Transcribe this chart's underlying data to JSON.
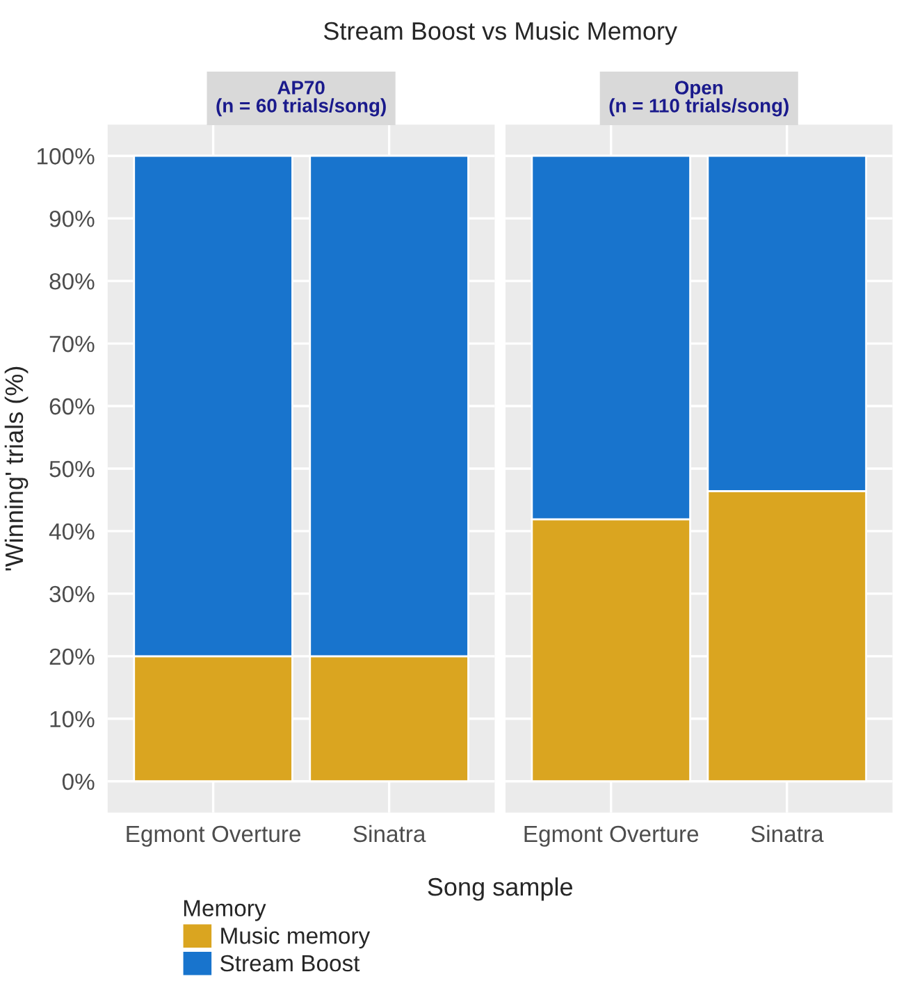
{
  "chart_data": [
    {
      "type": "bar",
      "title": "Stream Boost vs Music Memory",
      "subtitle": "AP70\n(n = 60 trials/song)",
      "xlabel": "Song sample",
      "ylabel": "'Winning' trials (%)",
      "legend_title": "Memory",
      "legend": "bottom",
      "stacked": true,
      "grid": true,
      "categories": [
        "Egmont Overture",
        "Sinatra"
      ],
      "series": [
        {
          "name": "Music memory",
          "color": "#daa520",
          "values": [
            20,
            20
          ]
        },
        {
          "name": "Stream Boost",
          "color": "#1874cd",
          "values": [
            80,
            80
          ]
        }
      ],
      "ylim": [
        -5,
        105
      ],
      "yticks": [
        {
          "value": 0,
          "label": "0%"
        },
        {
          "value": 10,
          "label": "10%"
        },
        {
          "value": 20,
          "label": "20%"
        },
        {
          "value": 30,
          "label": "30%"
        },
        {
          "value": 40,
          "label": "40%"
        },
        {
          "value": 50,
          "label": "50%"
        },
        {
          "value": 60,
          "label": "60%"
        },
        {
          "value": 70,
          "label": "70%"
        },
        {
          "value": 80,
          "label": "80%"
        },
        {
          "value": 90,
          "label": "90%"
        },
        {
          "value": 100,
          "label": "100%"
        }
      ]
    },
    {
      "type": "bar",
      "subtitle": "Open\n(n = 110 trials/song)",
      "stacked": true,
      "grid": true,
      "tick_labels": "x",
      "categories": [
        "Egmont Overture",
        "Sinatra"
      ],
      "series": [
        {
          "color": "#daa520",
          "values": [
            41.9,
            46.4
          ]
        },
        {
          "color": "#1874cd",
          "values": [
            58.1,
            53.6
          ]
        }
      ],
      "ylim": [
        -5,
        105
      ],
      "yticks": [
        {
          "value": 0,
          "label": null
        },
        {
          "value": 10,
          "label": null
        },
        {
          "value": 20,
          "label": null
        },
        {
          "value": 30,
          "label": null
        },
        {
          "value": 40,
          "label": null
        },
        {
          "value": 50,
          "label": null
        },
        {
          "value": 60,
          "label": null
        },
        {
          "value": 70,
          "label": null
        },
        {
          "value": 80,
          "label": null
        },
        {
          "value": 90,
          "label": null
        },
        {
          "value": 100,
          "label": null
        }
      ]
    }
  ]
}
